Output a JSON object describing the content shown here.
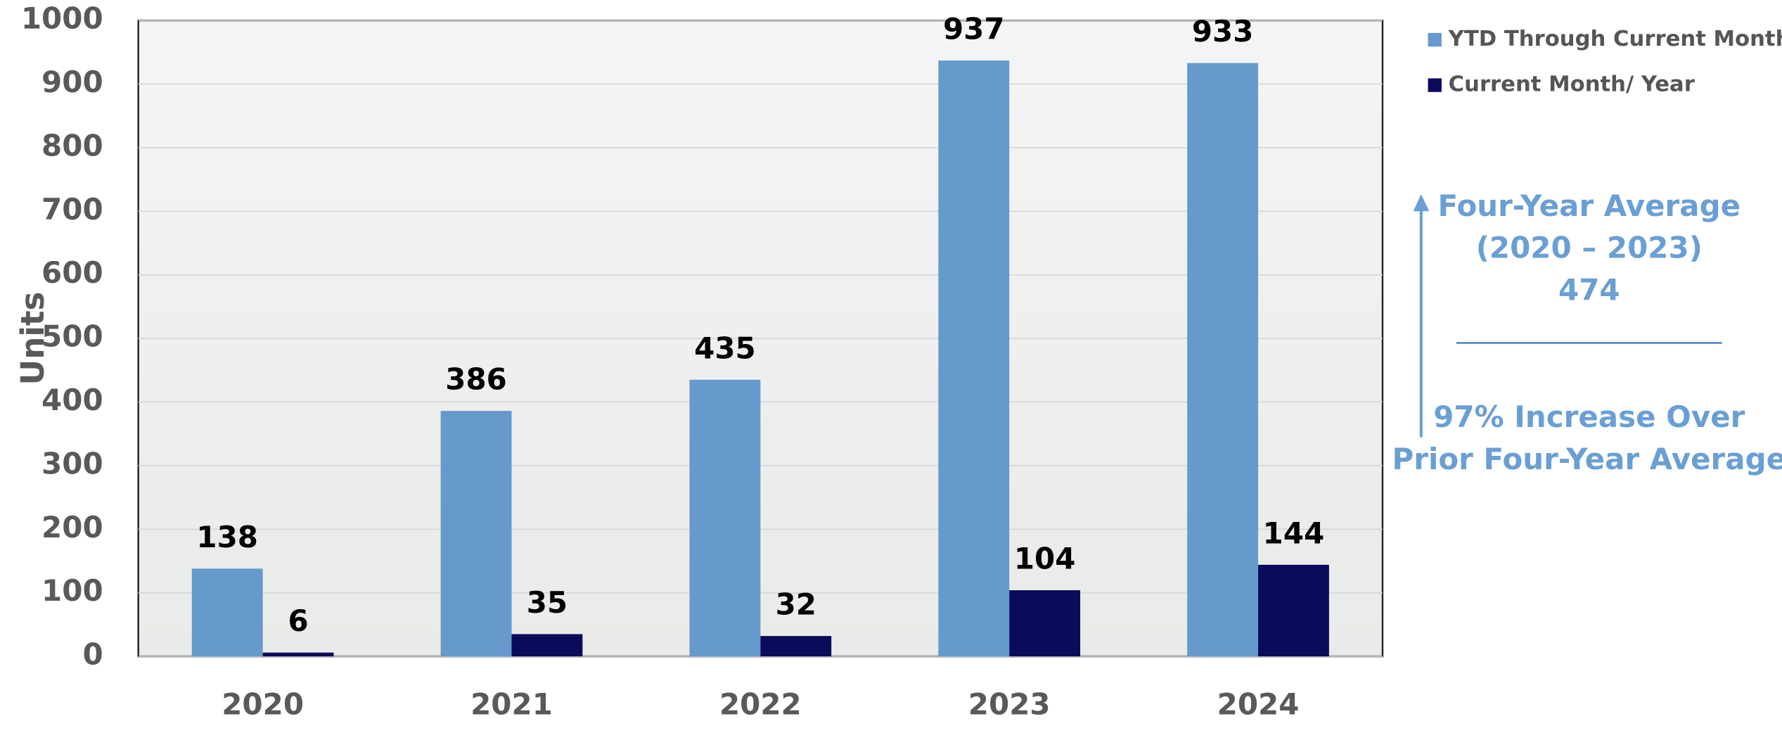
{
  "chart_data": {
    "type": "bar",
    "y_label": "Units",
    "categories": [
      "2020",
      "2021",
      "2022",
      "2023",
      "2024"
    ],
    "series": [
      {
        "name": "YTD Through Current Month",
        "color": "#6699cc",
        "values": [
          138,
          386,
          435,
          937,
          933
        ]
      },
      {
        "name": "Current Month/ Year",
        "color": "#0b0b5c",
        "values": [
          6,
          35,
          32,
          104,
          144
        ]
      }
    ],
    "ylim": [
      0,
      1000
    ],
    "yticks": [
      0,
      100,
      200,
      300,
      400,
      500,
      600,
      700,
      800,
      900,
      1000
    ],
    "grid": true,
    "legend": "right",
    "annotations": [
      "Four-Year Average",
      "(2020 – 2023)",
      "474",
      "97% Increase Over",
      "Prior Four-Year Average"
    ],
    "annotation_color": "#6a9fd4"
  }
}
